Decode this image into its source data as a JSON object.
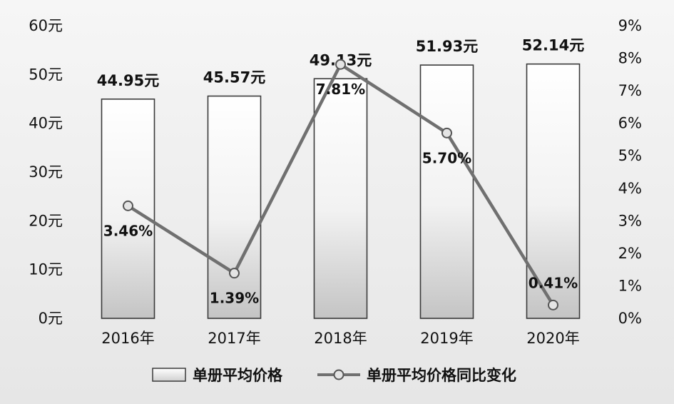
{
  "chart_data": {
    "type": "bar",
    "categories": [
      "2016年",
      "2017年",
      "2018年",
      "2019年",
      "2020年"
    ],
    "series": [
      {
        "name": "单册平均价格",
        "type": "bar",
        "axis": "left",
        "values": [
          44.95,
          45.57,
          49.13,
          51.93,
          52.14
        ],
        "labels": [
          "44.95元",
          "45.57元",
          "49.13元",
          "51.93元",
          "52.14元"
        ]
      },
      {
        "name": "单册平均价格同比变化",
        "type": "line",
        "axis": "right",
        "values": [
          3.46,
          1.39,
          7.81,
          5.7,
          0.41
        ],
        "labels": [
          "3.46%",
          "1.39%",
          "7.81%",
          "5.70%",
          "0.41%"
        ]
      }
    ],
    "left_axis": {
      "range": [
        0,
        60
      ],
      "ticks": [
        "0元",
        "10元",
        "20元",
        "30元",
        "40元",
        "50元",
        "60元"
      ]
    },
    "right_axis": {
      "range": [
        0,
        9
      ],
      "ticks": [
        "0%",
        "1%",
        "2%",
        "3%",
        "4%",
        "5%",
        "6%",
        "7%",
        "8%",
        "9%"
      ]
    },
    "grid": false,
    "legend_position": "bottom"
  }
}
